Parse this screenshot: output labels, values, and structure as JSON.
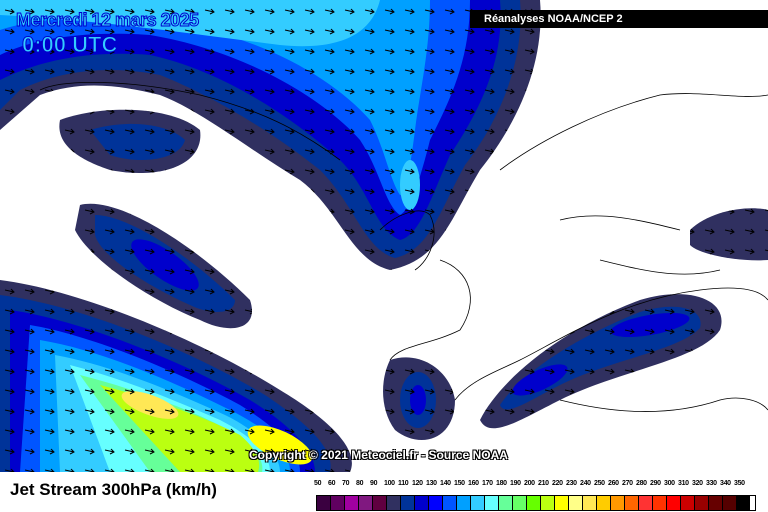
{
  "header": {
    "date": "Mercredi 12 mars 2025",
    "time": "0:00 UTC",
    "source": "Réanalyses NOAA/NCEP 2"
  },
  "footer": {
    "copyright": "Copyright © 2021 Meteociel.fr - Source NOAA",
    "product": "Jet Stream 300hPa (km/h)"
  },
  "legend": {
    "unit": "km/h",
    "labels": [
      "50",
      "60",
      "70",
      "80",
      "90",
      "100",
      "110",
      "120",
      "130",
      "140",
      "150",
      "160",
      "170",
      "180",
      "190",
      "200",
      "210",
      "220",
      "230",
      "240",
      "250",
      "260",
      "270",
      "280",
      "290",
      "300",
      "310",
      "320",
      "330",
      "340",
      "350"
    ],
    "colors": [
      "#3a0040",
      "#600060",
      "#a000a0",
      "#801880",
      "#600040",
      "#303060",
      "#003399",
      "#0000cc",
      "#0000ff",
      "#0055ff",
      "#00a0ff",
      "#33ccff",
      "#66ffff",
      "#66ff99",
      "#66ff66",
      "#66ff00",
      "#bbff11",
      "#ffff00",
      "#ffff88",
      "#ffe855",
      "#ffcc00",
      "#ff9900",
      "#ff6600",
      "#ff3333",
      "#ff3300",
      "#ff0000",
      "#cc0000",
      "#990000",
      "#660000",
      "#550000",
      "#000000"
    ]
  },
  "map": {
    "region": "North Atlantic / Europe",
    "background": "#ffffff",
    "wind_arrow_icon": "arrow-icon"
  }
}
